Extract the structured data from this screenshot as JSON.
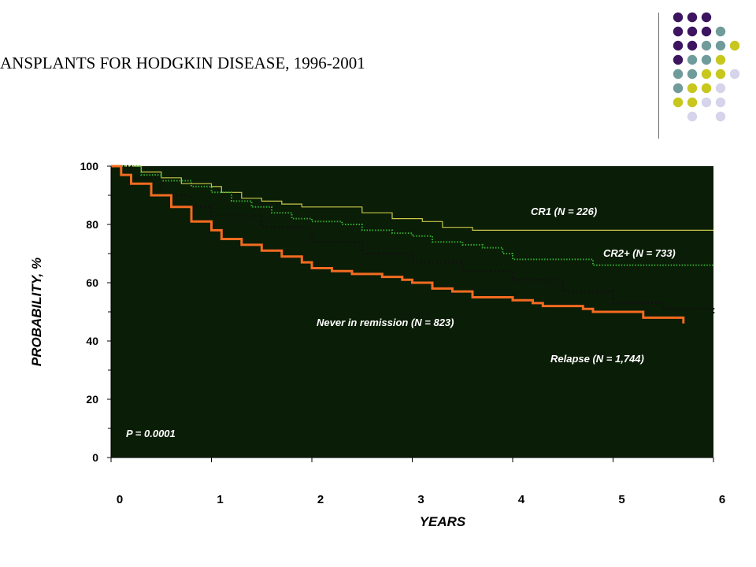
{
  "header": {
    "title": "ANSPLANTS FOR HODGKIN DISEASE, 1996-2001"
  },
  "decor": {
    "dot_colors": {
      "purple": "#3d1460",
      "teal": "#6f9c9a",
      "lime": "#c7c71e",
      "lavender": "#d6d4ea"
    },
    "dot_rows": [
      [
        "purple",
        "purple",
        "purple",
        "",
        "",
        ""
      ],
      [
        "purple",
        "purple",
        "purple",
        "teal",
        "",
        ""
      ],
      [
        "purple",
        "purple",
        "teal",
        "teal",
        "lime",
        ""
      ],
      [
        "purple",
        "teal",
        "teal",
        "lime",
        "",
        ""
      ],
      [
        "teal",
        "teal",
        "lime",
        "lime",
        "lavender",
        ""
      ],
      [
        "teal",
        "lime",
        "lime",
        "lavender",
        "",
        ""
      ],
      [
        "lime",
        "lime",
        "lavender",
        "lavender",
        "",
        ""
      ],
      [
        "",
        "lavender",
        "",
        "lavender",
        "",
        ""
      ]
    ]
  },
  "chart_data": {
    "type": "line",
    "xlabel": "YEARS",
    "ylabel": "PROBABILITY, %",
    "xlim": [
      0,
      6
    ],
    "ylim": [
      0,
      100
    ],
    "xticks": [
      "0",
      "1",
      "2",
      "3",
      "4",
      "5",
      "6"
    ],
    "yticks": [
      "0",
      "20",
      "40",
      "60",
      "80",
      "100"
    ],
    "plot_background": "#0a1d06",
    "annotation": "P = 0.0001",
    "series": [
      {
        "name": "CR1 (N = 226)",
        "color": "#c8c84a",
        "style": "step-thin",
        "points": [
          [
            0,
            100
          ],
          [
            0.3,
            98
          ],
          [
            0.5,
            96
          ],
          [
            0.7,
            94
          ],
          [
            1.0,
            93
          ],
          [
            1.1,
            91
          ],
          [
            1.3,
            89
          ],
          [
            1.5,
            88
          ],
          [
            1.7,
            87
          ],
          [
            1.9,
            86
          ],
          [
            2.1,
            86
          ],
          [
            2.5,
            84
          ],
          [
            2.8,
            82
          ],
          [
            3.1,
            81
          ],
          [
            3.3,
            79
          ],
          [
            3.6,
            78
          ],
          [
            4.0,
            78
          ],
          [
            4.5,
            78
          ],
          [
            5.0,
            78
          ],
          [
            5.5,
            78
          ],
          [
            6.0,
            78
          ]
        ]
      },
      {
        "name": "CR2+ (N = 733)",
        "color": "#33aa33",
        "style": "dotted",
        "points": [
          [
            0,
            100
          ],
          [
            0.3,
            97
          ],
          [
            0.5,
            95
          ],
          [
            0.8,
            93
          ],
          [
            1.0,
            91
          ],
          [
            1.2,
            88
          ],
          [
            1.4,
            86
          ],
          [
            1.6,
            84
          ],
          [
            1.8,
            82
          ],
          [
            2.0,
            81
          ],
          [
            2.3,
            80
          ],
          [
            2.5,
            78
          ],
          [
            2.8,
            77
          ],
          [
            3.0,
            76
          ],
          [
            3.2,
            74
          ],
          [
            3.5,
            73
          ],
          [
            3.7,
            72
          ],
          [
            3.9,
            70
          ],
          [
            4.0,
            68
          ],
          [
            4.5,
            68
          ],
          [
            4.8,
            66
          ],
          [
            5.0,
            66
          ],
          [
            5.5,
            66
          ],
          [
            6.0,
            66
          ]
        ]
      },
      {
        "name": "Never in remission (N = 823)",
        "color": "#111111",
        "style": "dotted-dark",
        "points": [
          [
            0,
            100
          ],
          [
            0.2,
            96
          ],
          [
            0.5,
            90
          ],
          [
            0.8,
            86
          ],
          [
            1.0,
            83
          ],
          [
            1.5,
            79
          ],
          [
            2.0,
            74
          ],
          [
            2.5,
            70
          ],
          [
            3.0,
            67
          ],
          [
            3.5,
            64
          ],
          [
            4.0,
            61
          ],
          [
            4.5,
            57
          ],
          [
            5.0,
            53
          ],
          [
            5.5,
            51
          ],
          [
            6.0,
            49
          ]
        ]
      },
      {
        "name": "Relapse (N = 1,744)",
        "color": "#f26b21",
        "style": "step-thick",
        "points": [
          [
            0,
            100
          ],
          [
            0.1,
            97
          ],
          [
            0.2,
            94
          ],
          [
            0.4,
            90
          ],
          [
            0.6,
            86
          ],
          [
            0.8,
            81
          ],
          [
            1.0,
            78
          ],
          [
            1.1,
            75
          ],
          [
            1.3,
            73
          ],
          [
            1.5,
            71
          ],
          [
            1.7,
            69
          ],
          [
            1.9,
            67
          ],
          [
            2.0,
            65
          ],
          [
            2.2,
            64
          ],
          [
            2.4,
            63
          ],
          [
            2.7,
            62
          ],
          [
            2.9,
            61
          ],
          [
            3.0,
            60
          ],
          [
            3.2,
            58
          ],
          [
            3.4,
            57
          ],
          [
            3.6,
            55
          ],
          [
            3.8,
            55
          ],
          [
            4.0,
            54
          ],
          [
            4.2,
            53
          ],
          [
            4.3,
            52
          ],
          [
            4.5,
            52
          ],
          [
            4.7,
            51
          ],
          [
            4.8,
            50
          ],
          [
            5.0,
            50
          ],
          [
            5.3,
            48
          ],
          [
            5.5,
            48
          ],
          [
            5.7,
            46
          ]
        ]
      }
    ]
  }
}
